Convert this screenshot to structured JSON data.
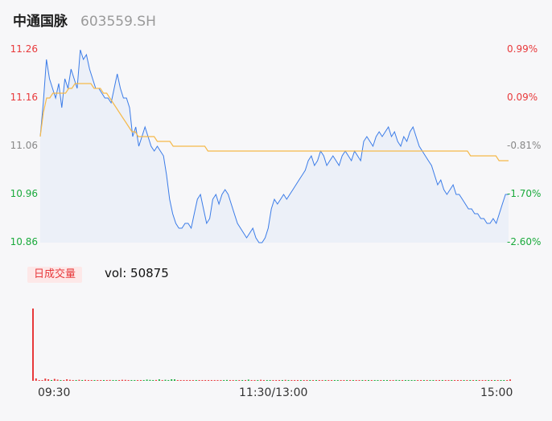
{
  "header": {
    "name": "中通国脉",
    "code": "603559.SH"
  },
  "colors": {
    "up": "#e8393b",
    "down": "#1aaa3c",
    "neutral": "#888888",
    "price_line": "#3b7ce8",
    "avg_line": "#f5b94a",
    "area": "#e9eef8"
  },
  "volume_tab": {
    "label": "日成交量",
    "readout": "vol: 50875"
  },
  "chart_data": [
    {
      "type": "line",
      "name": "intraday-price",
      "y_ticks": [
        "11.26",
        "11.16",
        "11.06",
        "10.96",
        "10.86"
      ],
      "pct_ticks": [
        "0.99%",
        "0.09%",
        "-0.81%",
        "-1.70%",
        "-2.60%"
      ],
      "ylim": [
        10.86,
        11.26
      ],
      "x_ticks": [
        "09:30",
        "11:30/13:00",
        "15:00"
      ],
      "series": [
        {
          "key": "price",
          "values": [
            11.08,
            11.15,
            11.24,
            11.2,
            11.18,
            11.16,
            11.19,
            11.14,
            11.2,
            11.18,
            11.22,
            11.2,
            11.18,
            11.26,
            11.24,
            11.25,
            11.22,
            11.2,
            11.18,
            11.18,
            11.17,
            11.16,
            11.16,
            11.15,
            11.18,
            11.21,
            11.18,
            11.16,
            11.16,
            11.14,
            11.08,
            11.1,
            11.06,
            11.08,
            11.1,
            11.08,
            11.06,
            11.05,
            11.06,
            11.05,
            11.04,
            11.0,
            10.95,
            10.92,
            10.9,
            10.89,
            10.89,
            10.9,
            10.9,
            10.89,
            10.92,
            10.95,
            10.96,
            10.93,
            10.9,
            10.91,
            10.95,
            10.96,
            10.94,
            10.96,
            10.97,
            10.96,
            10.94,
            10.92,
            10.9,
            10.89,
            10.88,
            10.87,
            10.88,
            10.89,
            10.87,
            10.86,
            10.86,
            10.87,
            10.89,
            10.93,
            10.95,
            10.94,
            10.95,
            10.96,
            10.95,
            10.96,
            10.97,
            10.98,
            10.99,
            11.0,
            11.01,
            11.03,
            11.04,
            11.02,
            11.03,
            11.05,
            11.04,
            11.02,
            11.03,
            11.04,
            11.03,
            11.02,
            11.04,
            11.05,
            11.04,
            11.03,
            11.05,
            11.04,
            11.03,
            11.07,
            11.08,
            11.07,
            11.06,
            11.08,
            11.09,
            11.08,
            11.09,
            11.1,
            11.08,
            11.09,
            11.07,
            11.06,
            11.08,
            11.07,
            11.09,
            11.1,
            11.08,
            11.06,
            11.05,
            11.04,
            11.03,
            11.02,
            11.0,
            10.98,
            10.99,
            10.97,
            10.96,
            10.97,
            10.98,
            10.96,
            10.96,
            10.95,
            10.94,
            10.93,
            10.93,
            10.92,
            10.92,
            10.91,
            10.91,
            10.9,
            10.9,
            10.91,
            10.9,
            10.92,
            10.94,
            10.96,
            10.96
          ],
          "color": "#3b7ce8"
        },
        {
          "key": "average",
          "values": [
            11.08,
            11.13,
            11.16,
            11.16,
            11.17,
            11.17,
            11.17,
            11.17,
            11.17,
            11.18,
            11.18,
            11.19,
            11.19,
            11.19,
            11.19,
            11.19,
            11.19,
            11.18,
            11.18,
            11.18,
            11.17,
            11.17,
            11.16,
            11.15,
            11.14,
            11.13,
            11.12,
            11.11,
            11.1,
            11.09,
            11.09,
            11.08,
            11.08,
            11.08,
            11.08,
            11.08,
            11.08,
            11.07,
            11.07,
            11.07,
            11.07,
            11.07,
            11.06,
            11.06,
            11.06,
            11.06,
            11.06,
            11.06,
            11.06,
            11.06,
            11.06,
            11.06,
            11.06,
            11.05,
            11.05,
            11.05,
            11.05,
            11.05,
            11.05,
            11.05,
            11.05,
            11.05,
            11.05,
            11.05,
            11.05,
            11.05,
            11.05,
            11.05,
            11.05,
            11.05,
            11.05,
            11.05,
            11.05,
            11.05,
            11.05,
            11.05,
            11.05,
            11.05,
            11.05,
            11.05,
            11.05,
            11.05,
            11.05,
            11.05,
            11.05,
            11.05,
            11.05,
            11.05,
            11.05,
            11.05,
            11.05,
            11.05,
            11.05,
            11.05,
            11.05,
            11.05,
            11.05,
            11.05,
            11.05,
            11.05,
            11.05,
            11.05,
            11.05,
            11.05,
            11.05,
            11.05,
            11.05,
            11.05,
            11.05,
            11.05,
            11.05,
            11.05,
            11.05,
            11.05,
            11.05,
            11.05,
            11.05,
            11.05,
            11.05,
            11.05,
            11.05,
            11.05,
            11.05,
            11.05,
            11.05,
            11.05,
            11.05,
            11.05,
            11.05,
            11.05,
            11.05,
            11.05,
            11.05,
            11.05,
            11.05,
            11.05,
            11.04,
            11.04,
            11.04,
            11.04,
            11.04,
            11.04,
            11.04,
            11.04,
            11.04,
            11.03,
            11.03,
            11.03,
            11.03
          ],
          "color": "#f5b94a"
        }
      ]
    },
    {
      "type": "bar",
      "name": "volume",
      "values": [
        900,
        30,
        8,
        7,
        28,
        19,
        8,
        24,
        15,
        7,
        6,
        19,
        13,
        9,
        7,
        13,
        9,
        12,
        5,
        6,
        4,
        4,
        3,
        4,
        6,
        11,
        9,
        4,
        6,
        13,
        12,
        8,
        7,
        4,
        10,
        8,
        10,
        15,
        12,
        10,
        11,
        18,
        8,
        13,
        9,
        19,
        18,
        7,
        10,
        4,
        8,
        8,
        5,
        6,
        3,
        5,
        4,
        3,
        3,
        4,
        6,
        7,
        4,
        11,
        6,
        4,
        5,
        4,
        9,
        7,
        15,
        8,
        3,
        5,
        13,
        10,
        4,
        3,
        5,
        9,
        7,
        6,
        12,
        8,
        6,
        5,
        4,
        7,
        8,
        6,
        4,
        5,
        7,
        6,
        3,
        4,
        5,
        4,
        6,
        4,
        5,
        3,
        6,
        5,
        4,
        6,
        3,
        5,
        2,
        5,
        3,
        4,
        5,
        6,
        4,
        3,
        5,
        4,
        11,
        6,
        4,
        3,
        4,
        3,
        6,
        4,
        5,
        4,
        3,
        4,
        5,
        3,
        5,
        6,
        7,
        4,
        5,
        4,
        3,
        8,
        6,
        5,
        7,
        4,
        6,
        4,
        5,
        3,
        4,
        3,
        5,
        4,
        4,
        3,
        9,
        17
      ],
      "colors": [
        "up",
        "up",
        "up",
        "up",
        "up",
        "up",
        "down",
        "up",
        "up",
        "down",
        "up",
        "up",
        "up",
        "up",
        "down",
        "up",
        "down",
        "up",
        "up",
        "up",
        "down",
        "up",
        "up",
        "down",
        "up",
        "up",
        "down",
        "down",
        "up",
        "up",
        "up",
        "up",
        "down",
        "down",
        "up",
        "up",
        "down",
        "down",
        "down",
        "down",
        "up",
        "down",
        "up",
        "down",
        "down",
        "down",
        "down",
        "up",
        "up",
        "up",
        "up",
        "up",
        "up",
        "down",
        "up",
        "up",
        "up",
        "up",
        "up",
        "up",
        "up",
        "up",
        "down",
        "down",
        "up",
        "up",
        "down",
        "up",
        "down",
        "up",
        "down",
        "up",
        "up",
        "down",
        "up",
        "up",
        "down",
        "down",
        "up",
        "up",
        "up",
        "down",
        "up",
        "down",
        "up",
        "up",
        "up",
        "down",
        "up",
        "up",
        "down",
        "up",
        "down",
        "up",
        "up",
        "down",
        "up",
        "up",
        "down",
        "down",
        "up",
        "up",
        "down",
        "up",
        "down",
        "up",
        "up",
        "down",
        "up",
        "down",
        "up",
        "down",
        "down",
        "up",
        "down",
        "down",
        "up",
        "up",
        "down",
        "down",
        "up",
        "down",
        "down",
        "down",
        "down",
        "up",
        "up",
        "down",
        "up",
        "down",
        "down",
        "up",
        "up",
        "down",
        "up",
        "up",
        "down",
        "up",
        "up",
        "up",
        "down",
        "up",
        "down",
        "up",
        "down",
        "up",
        "up",
        "up",
        "down",
        "up",
        "down",
        "up",
        "down",
        "down",
        "up",
        "up",
        "up"
      ]
    }
  ]
}
